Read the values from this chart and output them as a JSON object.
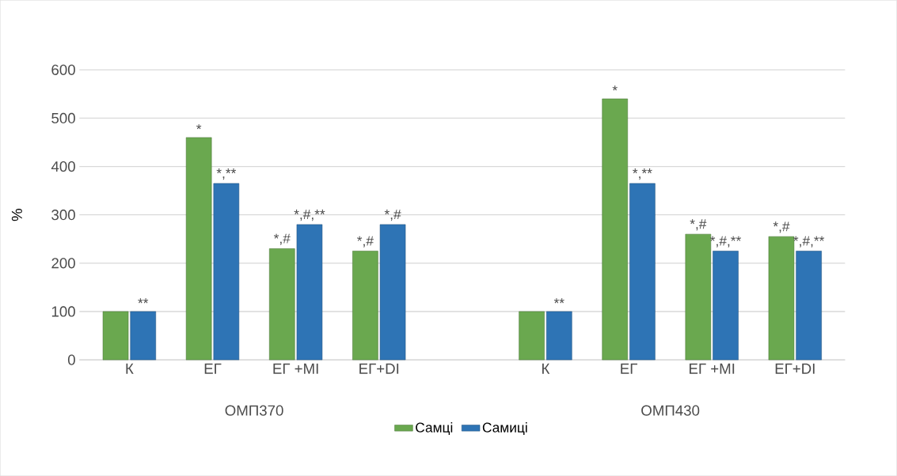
{
  "chart_data": {
    "type": "bar",
    "ylabel": "%",
    "categories": [
      "К",
      "ЕГ",
      "ЕГ +МІ",
      "ЕГ+DІ",
      null,
      "К",
      "ЕГ",
      "ЕГ +МІ",
      "ЕГ+DІ"
    ],
    "series": [
      {
        "name": "Самці",
        "color": "#6aa84f",
        "values": [
          100,
          460,
          230,
          225,
          null,
          100,
          540,
          260,
          255
        ],
        "value_labels": [
          null,
          "*",
          "*,#",
          "*,#",
          null,
          null,
          "*",
          "*,#",
          "*,#"
        ]
      },
      {
        "name": "Самиці",
        "color": "#2e74b5",
        "values": [
          100,
          365,
          280,
          280,
          null,
          100,
          365,
          225,
          225
        ],
        "value_labels": [
          "**",
          "*,**",
          "*,#,**",
          "*,#",
          null,
          "**",
          "*,**",
          "*,#,**",
          "*,#,**"
        ]
      }
    ],
    "annotations": [
      "ОМП370",
      "ОМП430"
    ],
    "ylim": [
      0,
      600
    ],
    "yticks": [
      0,
      100,
      200,
      300,
      400,
      500,
      600
    ],
    "grid": "y",
    "legend": "bottom"
  }
}
